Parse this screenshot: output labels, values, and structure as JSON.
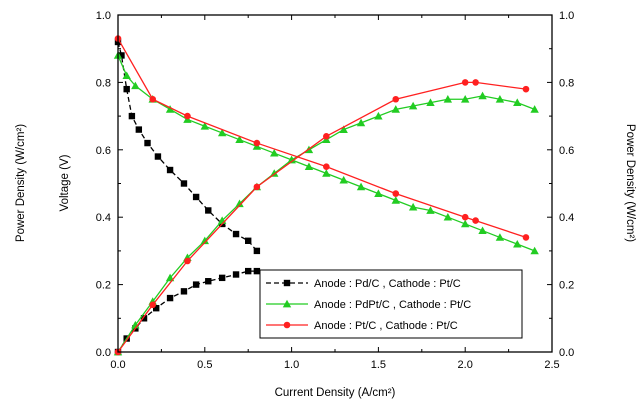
{
  "chart_data": {
    "type": "line",
    "xlabel": "Current Density (A/cm²)",
    "ylabel_left_outer": "Power Density (W/cm²)",
    "ylabel_left_inner": "Voltage (V)",
    "ylabel_right": "Power Density (W/cm²)",
    "xlim": [
      0,
      25
    ],
    "ylim": [
      0,
      1.0
    ],
    "x_ticks": [
      "0.0",
      "0.5",
      "1.0",
      "1.5",
      "2.0",
      "2.5"
    ],
    "y_ticks": [
      "0.0",
      "0.2",
      "0.4",
      "0.6",
      "0.8",
      "1.0"
    ],
    "legend_position": "lower-right",
    "series": [
      {
        "name": "Anode : Pd/C , Cathode : Pt/C",
        "color": "#000000",
        "marker": "square",
        "dashed": true,
        "voltage": [
          [
            0.0,
            0.92
          ],
          [
            0.2,
            0.88
          ],
          [
            0.5,
            0.78
          ],
          [
            0.8,
            0.7
          ],
          [
            1.2,
            0.66
          ],
          [
            1.7,
            0.62
          ],
          [
            2.3,
            0.58
          ],
          [
            3.0,
            0.54
          ],
          [
            3.8,
            0.5
          ],
          [
            4.5,
            0.46
          ],
          [
            5.2,
            0.42
          ],
          [
            6.0,
            0.38
          ],
          [
            6.8,
            0.35
          ],
          [
            7.5,
            0.33
          ],
          [
            8.0,
            0.3
          ]
        ],
        "power": [
          [
            0.0,
            0.0
          ],
          [
            0.5,
            0.04
          ],
          [
            1.0,
            0.07
          ],
          [
            1.5,
            0.1
          ],
          [
            2.2,
            0.13
          ],
          [
            3.0,
            0.16
          ],
          [
            3.8,
            0.18
          ],
          [
            4.5,
            0.2
          ],
          [
            5.2,
            0.21
          ],
          [
            6.0,
            0.22
          ],
          [
            6.8,
            0.23
          ],
          [
            7.5,
            0.24
          ],
          [
            8.0,
            0.24
          ]
        ]
      },
      {
        "name": "Anode : PdPt/C , Cathode : Pt/C",
        "color": "#22cc22",
        "marker": "triangle",
        "dashed": false,
        "voltage": [
          [
            0.0,
            0.88
          ],
          [
            0.5,
            0.82
          ],
          [
            1.0,
            0.79
          ],
          [
            2.0,
            0.75
          ],
          [
            3.0,
            0.72
          ],
          [
            4.0,
            0.69
          ],
          [
            5.0,
            0.67
          ],
          [
            6.0,
            0.65
          ],
          [
            7.0,
            0.63
          ],
          [
            8.0,
            0.61
          ],
          [
            9.0,
            0.59
          ],
          [
            10.0,
            0.57
          ],
          [
            11.0,
            0.55
          ],
          [
            12.0,
            0.53
          ],
          [
            13.0,
            0.51
          ],
          [
            14.0,
            0.49
          ],
          [
            15.0,
            0.47
          ],
          [
            16.0,
            0.45
          ],
          [
            17.0,
            0.43
          ],
          [
            18.0,
            0.42
          ],
          [
            19.0,
            0.4
          ],
          [
            20.0,
            0.38
          ],
          [
            21.0,
            0.36
          ],
          [
            22.0,
            0.34
          ],
          [
            23.0,
            0.32
          ],
          [
            24.0,
            0.3
          ]
        ],
        "power": [
          [
            0.0,
            0.0
          ],
          [
            1.0,
            0.08
          ],
          [
            2.0,
            0.15
          ],
          [
            3.0,
            0.22
          ],
          [
            4.0,
            0.28
          ],
          [
            5.0,
            0.33
          ],
          [
            6.0,
            0.39
          ],
          [
            7.0,
            0.44
          ],
          [
            8.0,
            0.49
          ],
          [
            9.0,
            0.53
          ],
          [
            10.0,
            0.57
          ],
          [
            11.0,
            0.6
          ],
          [
            12.0,
            0.63
          ],
          [
            13.0,
            0.66
          ],
          [
            14.0,
            0.68
          ],
          [
            15.0,
            0.7
          ],
          [
            16.0,
            0.72
          ],
          [
            17.0,
            0.73
          ],
          [
            18.0,
            0.74
          ],
          [
            19.0,
            0.75
          ],
          [
            20.0,
            0.75
          ],
          [
            21.0,
            0.76
          ],
          [
            22.0,
            0.75
          ],
          [
            23.0,
            0.74
          ],
          [
            24.0,
            0.72
          ]
        ]
      },
      {
        "name": "Anode : Pt/C , Cathode : Pt/C",
        "color": "#ff2020",
        "marker": "circle",
        "dashed": false,
        "voltage": [
          [
            0.0,
            0.93
          ],
          [
            2.0,
            0.75
          ],
          [
            4.0,
            0.7
          ],
          [
            8.0,
            0.62
          ],
          [
            12.0,
            0.55
          ],
          [
            16.0,
            0.47
          ],
          [
            20.0,
            0.4
          ],
          [
            20.6,
            0.39
          ],
          [
            23.5,
            0.34
          ]
        ],
        "power": [
          [
            0.0,
            0.0
          ],
          [
            2.0,
            0.14
          ],
          [
            4.0,
            0.27
          ],
          [
            8.0,
            0.49
          ],
          [
            12.0,
            0.64
          ],
          [
            16.0,
            0.75
          ],
          [
            20.0,
            0.8
          ],
          [
            20.6,
            0.8
          ],
          [
            23.5,
            0.78
          ]
        ]
      }
    ]
  }
}
